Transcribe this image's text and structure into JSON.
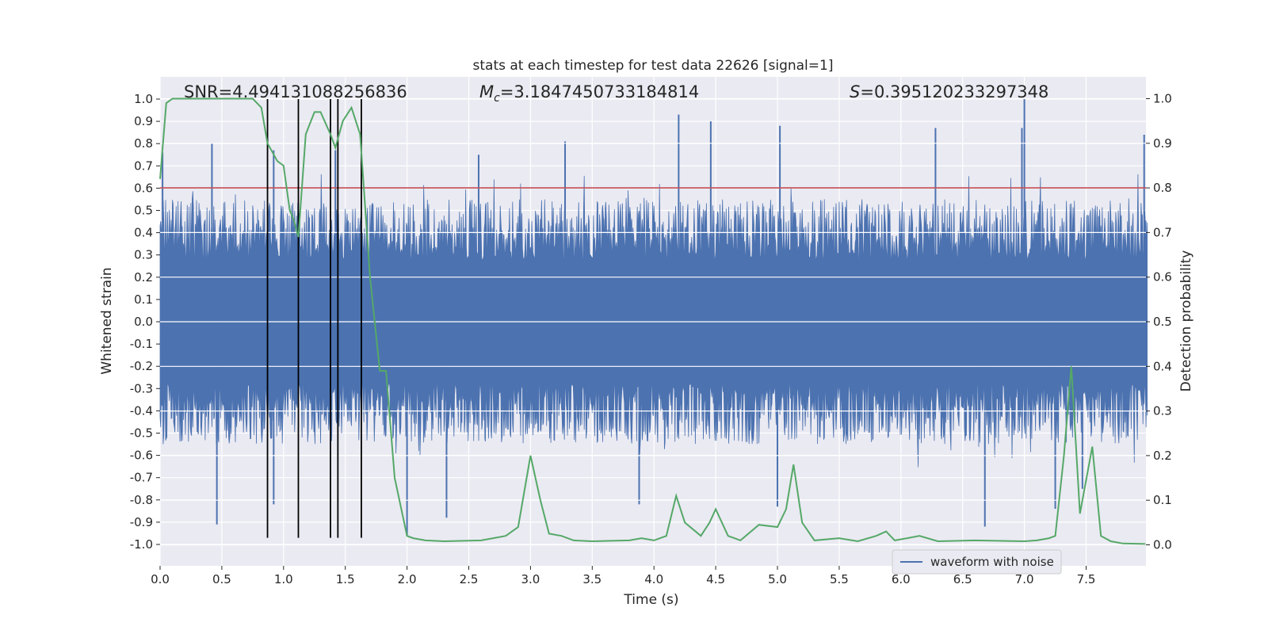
{
  "chart_data": {
    "type": "line",
    "title": "stats at each timestep for test data 22626 [signal=1]",
    "xlabel": "Time (s)",
    "ylabel_left": "Whitened strain",
    "ylabel_right": "Detection probability",
    "xlim": [
      0.0,
      8.0
    ],
    "ylim_left": [
      -1.08,
      1.1
    ],
    "ylim_right": [
      -0.05,
      1.05
    ],
    "x_ticks": [
      0.0,
      0.5,
      1.0,
      1.5,
      2.0,
      2.5,
      3.0,
      3.5,
      4.0,
      4.5,
      5.0,
      5.5,
      6.0,
      6.5,
      7.0,
      7.5
    ],
    "x_tick_labels": [
      "0.0",
      "0.5",
      "1.0",
      "1.5",
      "2.0",
      "2.5",
      "3.0",
      "3.5",
      "4.0",
      "4.5",
      "5.0",
      "5.5",
      "6.0",
      "6.5",
      "7.0",
      "7.5"
    ],
    "y_left_ticks": [
      1.0,
      0.9,
      0.8,
      0.7,
      0.6,
      0.5,
      0.4,
      0.3,
      0.2,
      0.1,
      0.0,
      -0.1,
      -0.2,
      -0.3,
      -0.4,
      -0.5,
      -0.6,
      -0.7,
      -0.8,
      -0.9,
      -1.0
    ],
    "y_left_tick_labels": [
      "1.0",
      "0.9",
      "0.8",
      "0.7",
      "0.6",
      "0.5",
      "0.4",
      "0.3",
      "0.2",
      "0.1",
      "0.0",
      "-0.1",
      "-0.2",
      "-0.3",
      "-0.4",
      "-0.5",
      "-0.6",
      "-0.7",
      "-0.8",
      "-0.9",
      "-1.0"
    ],
    "y_right_ticks": [
      1.0,
      0.9,
      0.8,
      0.7,
      0.6,
      0.5,
      0.4,
      0.3,
      0.2,
      0.1,
      0.0
    ],
    "y_right_tick_labels": [
      "1.0",
      "0.9",
      "0.8",
      "0.7",
      "0.6",
      "0.5",
      "0.4",
      "0.3",
      "0.2",
      "0.1",
      "0.0"
    ],
    "annotations": {
      "snr": "SNR=4.494131088256836",
      "mc_symbol": "M",
      "mc_subscript": "c",
      "mc_value": "=3.1847450733184814",
      "s_symbol": "S",
      "s_value": "=0.395120233297348"
    },
    "threshold": {
      "value": 0.8,
      "axis": "right",
      "color": "#c44e52"
    },
    "vertical_lines": {
      "x": [
        0.87,
        1.12,
        1.38,
        1.44,
        1.63
      ],
      "y_top": 1.0,
      "y_bottom": -0.97,
      "color": "#000000"
    },
    "series": [
      {
        "name": "waveform with noise",
        "axis": "left",
        "color": "#4c72b0",
        "style": "dense noise, samples 0-8 s",
        "envelope_core": 0.28,
        "envelope_typical": 0.55,
        "peaks": [
          {
            "x": 0.02,
            "y": 0.76
          },
          {
            "x": 0.42,
            "y": 0.8
          },
          {
            "x": 0.92,
            "y": 0.77
          },
          {
            "x": 1.42,
            "y": 0.77
          },
          {
            "x": 2.58,
            "y": 0.75
          },
          {
            "x": 3.28,
            "y": 0.81
          },
          {
            "x": 4.2,
            "y": 0.93
          },
          {
            "x": 4.46,
            "y": 0.9
          },
          {
            "x": 5.02,
            "y": 0.88
          },
          {
            "x": 6.28,
            "y": 0.87
          },
          {
            "x": 6.98,
            "y": 0.87
          },
          {
            "x": 7.0,
            "y": 1.0
          },
          {
            "x": 7.97,
            "y": 0.84
          },
          {
            "x": 0.46,
            "y": -0.91
          },
          {
            "x": 0.92,
            "y": -0.82
          },
          {
            "x": 2.0,
            "y": -0.96
          },
          {
            "x": 2.32,
            "y": -0.88
          },
          {
            "x": 3.88,
            "y": -0.82
          },
          {
            "x": 5.0,
            "y": -0.83
          },
          {
            "x": 6.68,
            "y": -0.92
          },
          {
            "x": 7.25,
            "y": -0.84
          },
          {
            "x": 7.47,
            "y": -0.75
          }
        ]
      },
      {
        "name": "detection probability",
        "axis": "right",
        "color": "#55a868",
        "x": [
          0.0,
          0.05,
          0.1,
          0.15,
          0.25,
          0.5,
          0.75,
          0.82,
          0.87,
          0.95,
          1.0,
          1.05,
          1.08,
          1.12,
          1.18,
          1.25,
          1.3,
          1.38,
          1.42,
          1.48,
          1.55,
          1.62,
          1.7,
          1.78,
          1.83,
          1.9,
          2.0,
          2.05,
          2.15,
          2.3,
          2.6,
          2.8,
          2.9,
          3.0,
          3.08,
          3.15,
          3.25,
          3.35,
          3.5,
          3.8,
          3.9,
          4.0,
          4.1,
          4.18,
          4.25,
          4.38,
          4.45,
          4.5,
          4.6,
          4.7,
          4.85,
          5.0,
          5.07,
          5.13,
          5.2,
          5.3,
          5.5,
          5.65,
          5.8,
          5.88,
          5.95,
          6.05,
          6.15,
          6.3,
          6.6,
          7.0,
          7.1,
          7.2,
          7.25,
          7.32,
          7.38,
          7.45,
          7.55,
          7.62,
          7.7,
          7.8,
          7.98
        ],
        "y": [
          0.82,
          0.99,
          1.0,
          1.0,
          1.0,
          1.0,
          1.0,
          0.98,
          0.9,
          0.86,
          0.85,
          0.75,
          0.73,
          0.69,
          0.92,
          0.97,
          0.97,
          0.92,
          0.89,
          0.95,
          0.98,
          0.92,
          0.6,
          0.39,
          0.39,
          0.15,
          0.02,
          0.015,
          0.01,
          0.008,
          0.01,
          0.02,
          0.04,
          0.2,
          0.1,
          0.025,
          0.02,
          0.01,
          0.008,
          0.01,
          0.015,
          0.01,
          0.02,
          0.11,
          0.05,
          0.02,
          0.05,
          0.08,
          0.02,
          0.01,
          0.045,
          0.04,
          0.08,
          0.18,
          0.05,
          0.01,
          0.015,
          0.008,
          0.02,
          0.03,
          0.01,
          0.015,
          0.02,
          0.008,
          0.01,
          0.008,
          0.01,
          0.015,
          0.02,
          0.2,
          0.4,
          0.07,
          0.22,
          0.02,
          0.008,
          0.003,
          0.002
        ]
      }
    ],
    "legend": {
      "label": "waveform with noise",
      "placement": "bottom-right"
    }
  }
}
